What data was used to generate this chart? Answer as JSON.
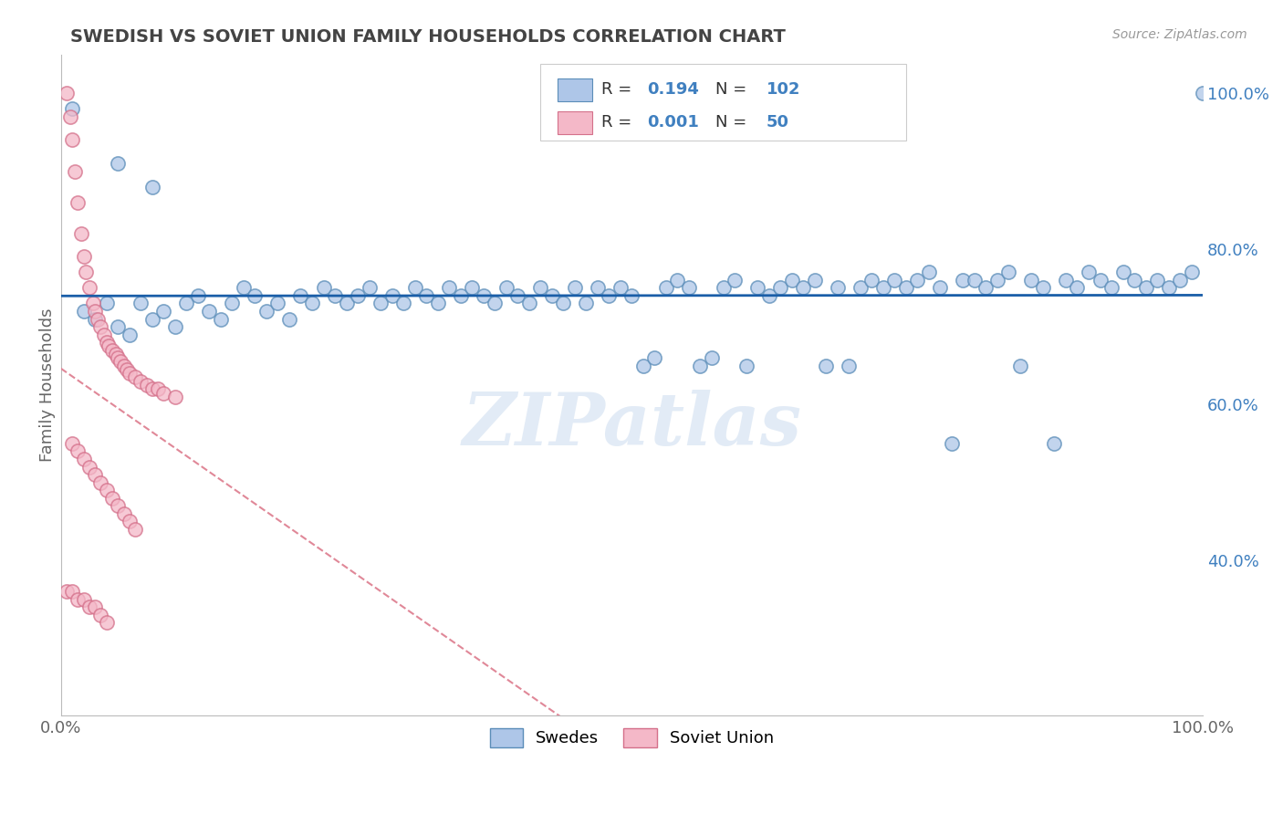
{
  "title": "SWEDISH VS SOVIET UNION FAMILY HOUSEHOLDS CORRELATION CHART",
  "source_text": "Source: ZipAtlas.com",
  "ylabel": "Family Households",
  "legend_blue_R": "0.194",
  "legend_blue_N": "102",
  "legend_pink_R": "0.001",
  "legend_pink_N": "50",
  "legend_label_blue": "Swedes",
  "legend_label_pink": "Soviet Union",
  "blue_color": "#aec6e8",
  "blue_edge_color": "#5b8db8",
  "pink_color": "#f4b8c8",
  "pink_edge_color": "#d4708a",
  "trend_blue_color": "#1a5ea8",
  "trend_pink_color": "#e08898",
  "watermark": "ZIPatlas",
  "watermark_color": "#d0dff0",
  "blue_x": [
    1,
    2,
    3,
    4,
    5,
    6,
    7,
    8,
    9,
    10,
    11,
    12,
    13,
    14,
    15,
    16,
    17,
    18,
    19,
    20,
    21,
    22,
    23,
    24,
    25,
    26,
    27,
    28,
    29,
    30,
    31,
    32,
    33,
    34,
    35,
    36,
    37,
    38,
    39,
    40,
    41,
    42,
    43,
    44,
    45,
    46,
    47,
    48,
    49,
    50,
    51,
    52,
    53,
    54,
    55,
    56,
    57,
    58,
    59,
    60,
    61,
    62,
    63,
    64,
    65,
    66,
    67,
    68,
    69,
    70,
    71,
    72,
    73,
    74,
    75,
    76,
    77,
    78,
    79,
    80,
    81,
    82,
    83,
    84,
    85,
    86,
    87,
    88,
    89,
    90,
    91,
    92,
    93,
    94,
    95,
    96,
    97,
    98,
    99,
    100,
    5,
    8
  ],
  "blue_y": [
    98,
    72,
    71,
    73,
    70,
    69,
    73,
    71,
    72,
    70,
    73,
    74,
    72,
    71,
    73,
    75,
    74,
    72,
    73,
    71,
    74,
    73,
    75,
    74,
    73,
    74,
    75,
    73,
    74,
    73,
    75,
    74,
    73,
    75,
    74,
    75,
    74,
    73,
    75,
    74,
    73,
    75,
    74,
    73,
    75,
    73,
    75,
    74,
    75,
    74,
    65,
    66,
    75,
    76,
    75,
    65,
    66,
    75,
    76,
    65,
    75,
    74,
    75,
    76,
    75,
    76,
    65,
    75,
    65,
    75,
    76,
    75,
    76,
    75,
    76,
    77,
    75,
    55,
    76,
    76,
    75,
    76,
    77,
    65,
    76,
    75,
    55,
    76,
    75,
    77,
    76,
    75,
    77,
    76,
    75,
    76,
    75,
    76,
    77,
    100,
    91,
    88
  ],
  "pink_x": [
    0.5,
    0.8,
    1.0,
    1.2,
    1.5,
    1.8,
    2.0,
    2.2,
    2.5,
    2.8,
    3.0,
    3.2,
    3.5,
    3.8,
    4.0,
    4.2,
    4.5,
    4.8,
    5.0,
    5.2,
    5.5,
    5.8,
    6.0,
    6.5,
    7.0,
    7.5,
    8.0,
    8.5,
    9.0,
    10.0,
    1.0,
    1.5,
    2.0,
    2.5,
    3.0,
    3.5,
    4.0,
    4.5,
    5.0,
    5.5,
    6.0,
    6.5,
    0.5,
    1.0,
    1.5,
    2.0,
    2.5,
    3.0,
    3.5,
    4.0
  ],
  "pink_y": [
    100,
    97,
    94,
    90,
    86,
    82,
    79,
    77,
    75,
    73,
    72,
    71,
    70,
    69,
    68,
    67.5,
    67,
    66.5,
    66,
    65.5,
    65,
    64.5,
    64,
    63.5,
    63,
    62.5,
    62,
    62,
    61.5,
    61,
    55,
    54,
    53,
    52,
    51,
    50,
    49,
    48,
    47,
    46,
    45,
    44,
    36,
    36,
    35,
    35,
    34,
    34,
    33,
    32
  ],
  "xlim": [
    0.0,
    100.0
  ],
  "ylim": [
    20.0,
    105.0
  ],
  "right_ytick_positions": [
    40.0,
    60.0,
    80.0,
    100.0
  ],
  "right_ytick_labels": [
    "40.0%",
    "60.0%",
    "80.0%",
    "100.0%"
  ],
  "grid_color": "#e0e0e0",
  "grid_linestyle": "--",
  "background_color": "#ffffff",
  "title_color": "#444444",
  "axis_label_color": "#666666",
  "right_tick_color": "#4080c0",
  "scatter_size": 120,
  "scatter_linewidth": 1.2,
  "scatter_alpha": 0.75,
  "trend_blue_linewidth": 2.0,
  "trend_pink_linewidth": 1.5
}
